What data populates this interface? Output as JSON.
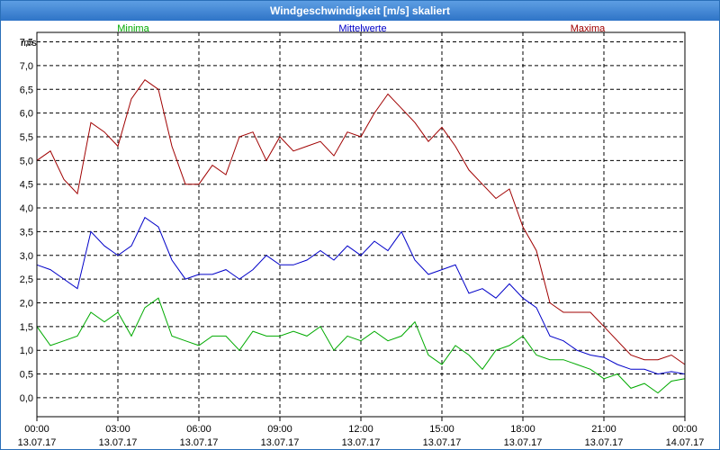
{
  "window": {
    "title": "Windgeschwindigkeit [m/s] skaliert"
  },
  "chart_data": {
    "type": "line",
    "title": "Windgeschwindigkeit [m/s] skaliert",
    "ylabel": "m/s",
    "ylim": [
      -0.4,
      7.7
    ],
    "yticks": [
      "0,0",
      "0,5",
      "1,0",
      "1,5",
      "2,0",
      "2,5",
      "3,0",
      "3,5",
      "4,0",
      "4,5",
      "5,0",
      "5,5",
      "6,0",
      "6,5",
      "7,0",
      "7,5"
    ],
    "xlim_hours": [
      0,
      24
    ],
    "xticks": [
      {
        "time": "00:00",
        "date": "13.07.17"
      },
      {
        "time": "03:00",
        "date": "13.07.17"
      },
      {
        "time": "06:00",
        "date": "13.07.17"
      },
      {
        "time": "09:00",
        "date": "13.07.17"
      },
      {
        "time": "12:00",
        "date": "13.07.17"
      },
      {
        "time": "15:00",
        "date": "13.07.17"
      },
      {
        "time": "18:00",
        "date": "13.07.17"
      },
      {
        "time": "21:00",
        "date": "13.07.17"
      },
      {
        "time": "00:00",
        "date": "14.07.17"
      }
    ],
    "grid": true,
    "series": [
      {
        "name": "Minima",
        "color": "#00aa00",
        "x": [
          0,
          0.5,
          1,
          1.5,
          2,
          2.5,
          3,
          3.5,
          4,
          4.5,
          5,
          5.5,
          6,
          6.5,
          7,
          7.5,
          8,
          8.5,
          9,
          9.5,
          10,
          10.5,
          11,
          11.5,
          12,
          12.5,
          13,
          13.5,
          14,
          14.5,
          15,
          15.5,
          16,
          16.5,
          17,
          17.5,
          18,
          18.5,
          19,
          19.5,
          20,
          20.5,
          21,
          21.5,
          22,
          22.5,
          23,
          23.5,
          24
        ],
        "y": [
          1.5,
          1.1,
          1.2,
          1.3,
          1.8,
          1.6,
          1.8,
          1.3,
          1.9,
          2.1,
          1.3,
          1.2,
          1.1,
          1.3,
          1.3,
          1.0,
          1.4,
          1.3,
          1.3,
          1.4,
          1.3,
          1.5,
          1.0,
          1.3,
          1.2,
          1.4,
          1.2,
          1.3,
          1.6,
          0.9,
          0.7,
          1.1,
          0.9,
          0.6,
          1.0,
          1.1,
          1.3,
          0.9,
          0.8,
          0.8,
          0.7,
          0.6,
          0.4,
          0.5,
          0.2,
          0.3,
          0.1,
          0.35,
          0.4
        ]
      },
      {
        "name": "Mittelwerte",
        "color": "#0000c8",
        "x": [
          0,
          0.5,
          1,
          1.5,
          2,
          2.5,
          3,
          3.5,
          4,
          4.5,
          5,
          5.5,
          6,
          6.5,
          7,
          7.5,
          8,
          8.5,
          9,
          9.5,
          10,
          10.5,
          11,
          11.5,
          12,
          12.5,
          13,
          13.5,
          14,
          14.5,
          15,
          15.5,
          16,
          16.5,
          17,
          17.5,
          18,
          18.5,
          19,
          19.5,
          20,
          20.5,
          21,
          21.5,
          22,
          22.5,
          23,
          23.5,
          24
        ],
        "y": [
          2.8,
          2.7,
          2.5,
          2.3,
          3.5,
          3.2,
          3.0,
          3.2,
          3.8,
          3.6,
          2.9,
          2.5,
          2.6,
          2.6,
          2.7,
          2.5,
          2.7,
          3.0,
          2.8,
          2.8,
          2.9,
          3.1,
          2.9,
          3.2,
          3.0,
          3.3,
          3.1,
          3.5,
          2.9,
          2.6,
          2.7,
          2.8,
          2.2,
          2.3,
          2.1,
          2.4,
          2.1,
          1.9,
          1.3,
          1.2,
          1.0,
          0.9,
          0.85,
          0.7,
          0.6,
          0.6,
          0.5,
          0.55,
          0.5
        ]
      },
      {
        "name": "Maxima",
        "color": "#a00000",
        "x": [
          0,
          0.5,
          1,
          1.5,
          2,
          2.5,
          3,
          3.5,
          4,
          4.5,
          5,
          5.5,
          6,
          6.5,
          7,
          7.5,
          8,
          8.5,
          9,
          9.5,
          10,
          10.5,
          11,
          11.5,
          12,
          12.5,
          13,
          13.5,
          14,
          14.5,
          15,
          15.5,
          16,
          16.5,
          17,
          17.5,
          18,
          18.5,
          19,
          19.5,
          20,
          20.5,
          21,
          21.5,
          22,
          22.5,
          23,
          23.5,
          24
        ],
        "y": [
          5.0,
          5.2,
          4.6,
          4.3,
          5.8,
          5.6,
          5.3,
          6.3,
          6.7,
          6.5,
          5.3,
          4.5,
          4.5,
          4.9,
          4.7,
          5.5,
          5.6,
          5.0,
          5.5,
          5.2,
          5.3,
          5.4,
          5.1,
          5.6,
          5.5,
          6.0,
          6.4,
          6.1,
          5.8,
          5.4,
          5.7,
          5.3,
          4.8,
          4.5,
          4.2,
          4.4,
          3.6,
          3.1,
          2.0,
          1.8,
          1.8,
          1.8,
          1.5,
          1.2,
          0.9,
          0.8,
          0.8,
          0.9,
          0.7
        ]
      }
    ]
  }
}
